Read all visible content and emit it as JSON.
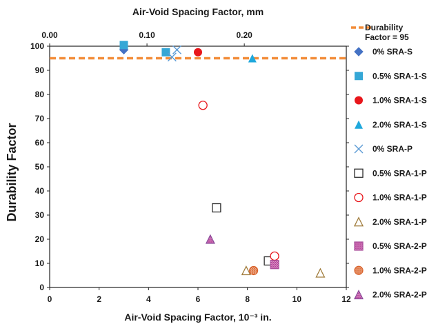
{
  "chart_data": {
    "type": "scatter",
    "title": "",
    "xlabel": "Air-Void Spacing Factor, 10⁻³ in.",
    "xlabel_top": "Air-Void Spacing Factor, mm",
    "ylabel": "Durability Factor",
    "xlim": [
      0,
      12
    ],
    "ylim": [
      0,
      100
    ],
    "xlim_top": [
      0,
      0.3048
    ],
    "x_ticks": [
      "0",
      "2",
      "4",
      "6",
      "8",
      "10",
      "12"
    ],
    "y_ticks": [
      "0",
      "10",
      "20",
      "30",
      "40",
      "50",
      "60",
      "70",
      "80",
      "90",
      "100"
    ],
    "x_top_ticks": [
      {
        "value": 0.0,
        "label": "0.00"
      },
      {
        "value": 0.1,
        "label": "0.10"
      },
      {
        "value": 0.2,
        "label": "0.20"
      }
    ],
    "grid": false,
    "legend_position": "right",
    "reference_line": {
      "name": "Durability Factor = 95",
      "name_lines": [
        "Durability",
        "Factor = 95"
      ],
      "y": 95,
      "color": "#f28c38",
      "style": "dashed"
    },
    "series": [
      {
        "name": "0% SRA-S",
        "marker": "diamond-filled",
        "color": "#4472c4",
        "x": [
          3.0
        ],
        "y": [
          98.5
        ]
      },
      {
        "name": "0.5% SRA-1-S",
        "marker": "square-filled",
        "color": "#35a7d6",
        "x": [
          3.0,
          4.7
        ],
        "y": [
          100.5,
          97.5
        ]
      },
      {
        "name": "1.0% SRA-1-S",
        "marker": "circle-filled",
        "color": "#e8161b",
        "x": [
          6.0
        ],
        "y": [
          97.5
        ]
      },
      {
        "name": "2.0% SRA-1-S",
        "marker": "triangle-filled",
        "color": "#1fa8dc",
        "x": [
          8.2
        ],
        "y": [
          95
        ]
      },
      {
        "name": "0% SRA-P",
        "marker": "x",
        "color": "#5b9bd5",
        "x": [
          4.95,
          5.15
        ],
        "y": [
          95.5,
          98.5
        ]
      },
      {
        "name": "0.5% SRA-1-P",
        "marker": "square-open",
        "color": "#2b2b2b",
        "x": [
          6.75,
          8.85
        ],
        "y": [
          33,
          11
        ]
      },
      {
        "name": "1.0% SRA-1-P",
        "marker": "circle-open",
        "color": "#e8161b",
        "x": [
          6.2,
          9.1
        ],
        "y": [
          75.5,
          13
        ]
      },
      {
        "name": "2.0% SRA-1-P",
        "marker": "triangle-open",
        "color": "#a07c3c",
        "x": [
          7.95,
          10.95
        ],
        "y": [
          7,
          6
        ]
      },
      {
        "name": "0.5% SRA-2-P",
        "marker": "square-hatched",
        "color": "#a84c9a",
        "x": [
          9.1
        ],
        "y": [
          9.5
        ]
      },
      {
        "name": "1.0% SRA-2-P",
        "marker": "circle-hatched",
        "color": "#d9622b",
        "x": [
          8.25
        ],
        "y": [
          7
        ]
      },
      {
        "name": "2.0% SRA-2-P",
        "marker": "triangle-hatched",
        "color": "#8a4a9a",
        "x": [
          6.5
        ],
        "y": [
          20
        ]
      }
    ]
  }
}
